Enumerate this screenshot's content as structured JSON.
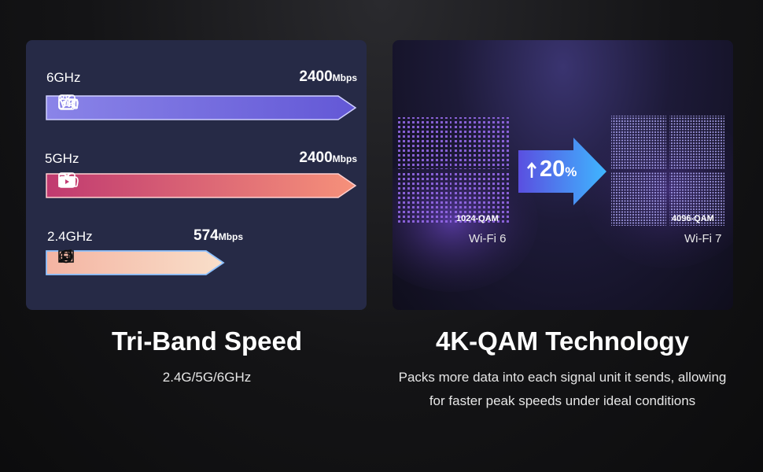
{
  "tri_band": {
    "bands": [
      {
        "name": "6GHz",
        "speed_value": "2400",
        "speed_unit": "Mbps",
        "icons": [
          "4k-icon",
          "gamepad-icon",
          "vr-icon",
          "camera-icon"
        ]
      },
      {
        "name": "5GHz",
        "speed_value": "2400",
        "speed_unit": "Mbps",
        "icons": [
          "4k-icon",
          "gamepad-icon",
          "tv-icon",
          "folder-icon"
        ]
      },
      {
        "name": "2.4GHz",
        "speed_value": "574",
        "speed_unit": "Mbps",
        "icons": [
          "image-icon",
          "globe-icon",
          "music-icon"
        ]
      }
    ],
    "icon_texts": {
      "k4": "4K",
      "vr": "VR"
    },
    "title": "Tri-Band Speed",
    "subtitle": "2.4G/5G/6GHz"
  },
  "qam": {
    "left_grid_label": "1024-QAM",
    "right_grid_label": "4096-QAM",
    "left_wifi": "Wi-Fi 6",
    "right_wifi": "Wi-Fi 7",
    "increase_value": "20",
    "increase_unit": "%",
    "title": "4K-QAM Technology",
    "description": "Packs more data into each signal unit it sends, allowing for faster peak speeds under ideal conditions"
  },
  "colors": {
    "band6_start": "#7d7fe6",
    "band6_end": "#6a5ad8",
    "band5_start": "#c23a72",
    "band5_end": "#f49078",
    "band24_start": "#f4b6a6",
    "band24_end": "#f8dcc8",
    "arrow": "#4aa6ff"
  }
}
